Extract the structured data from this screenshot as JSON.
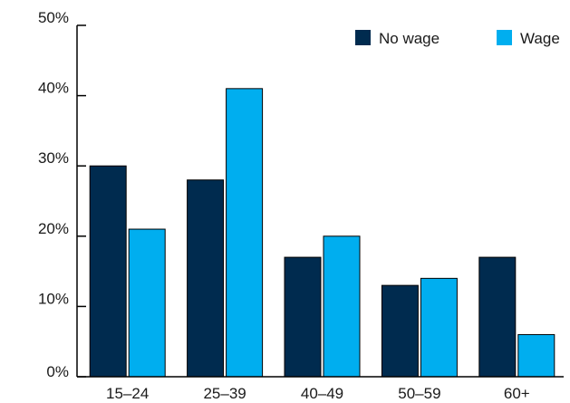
{
  "chart_data": {
    "type": "bar",
    "categories": [
      "15–24",
      "25–39",
      "40–49",
      "50–59",
      "60+"
    ],
    "series": [
      {
        "name": "No wage",
        "values": [
          30,
          28,
          17,
          13,
          17
        ],
        "color": "#002b4f"
      },
      {
        "name": "Wage",
        "values": [
          21,
          41,
          20,
          14,
          6
        ],
        "color": "#00aeef"
      }
    ],
    "y_ticks": [
      "0%",
      "10%",
      "20%",
      "30%",
      "40%",
      "50%"
    ],
    "ylim": [
      0,
      50
    ],
    "y_unit": "%",
    "grid": false,
    "legend_position": "top-right"
  }
}
